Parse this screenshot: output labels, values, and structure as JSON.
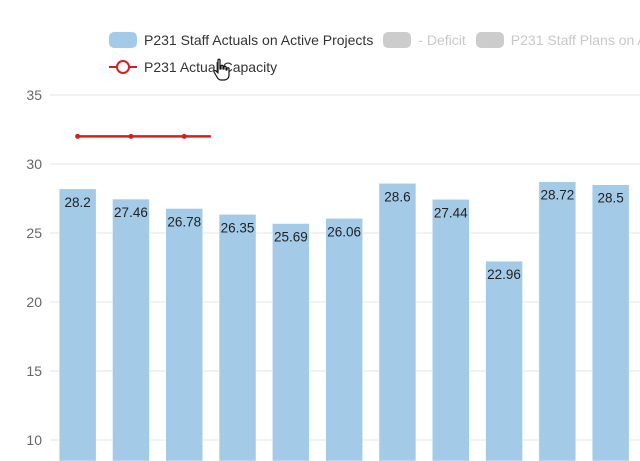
{
  "legend": {
    "items": [
      {
        "label": "P231 Staff Actuals on Active Projects",
        "color": "#a3cbe8",
        "state": "visible"
      },
      {
        "label": "- Deficit",
        "color": "#cccccc",
        "state": "hidden"
      },
      {
        "label": "P231 Staff Plans on A",
        "color": "#cccccc",
        "state": "hidden"
      }
    ],
    "line_item": {
      "label": "P231 Actual Capacity",
      "color": "#d42020",
      "state": "visible"
    }
  },
  "chart_data": {
    "type": "bar",
    "title": "",
    "xlabel": "",
    "ylabel": "",
    "ylim": [
      10,
      35
    ],
    "y_ticks": [
      "35",
      "30",
      "25",
      "20",
      "15",
      "10"
    ],
    "grid": true,
    "legend_position": "top",
    "series": [
      {
        "name": "P231 Staff Actuals on Active Projects",
        "type": "bar",
        "color": "#a3cbe8",
        "values": [
          28.2,
          27.46,
          26.78,
          26.35,
          25.69,
          26.06,
          28.6,
          27.44,
          22.96,
          28.72,
          28.5
        ],
        "labels": [
          "28.2",
          "27.46",
          "26.78",
          "26.35",
          "25.69",
          "26.06",
          "28.6",
          "27.44",
          "22.96",
          "28.72",
          "28.5"
        ]
      },
      {
        "name": "P231 Actual Capacity",
        "type": "line",
        "color": "#d42020",
        "values": [
          32,
          32,
          32
        ]
      }
    ]
  },
  "cursor": {
    "icon": "hand-pointer-icon"
  }
}
